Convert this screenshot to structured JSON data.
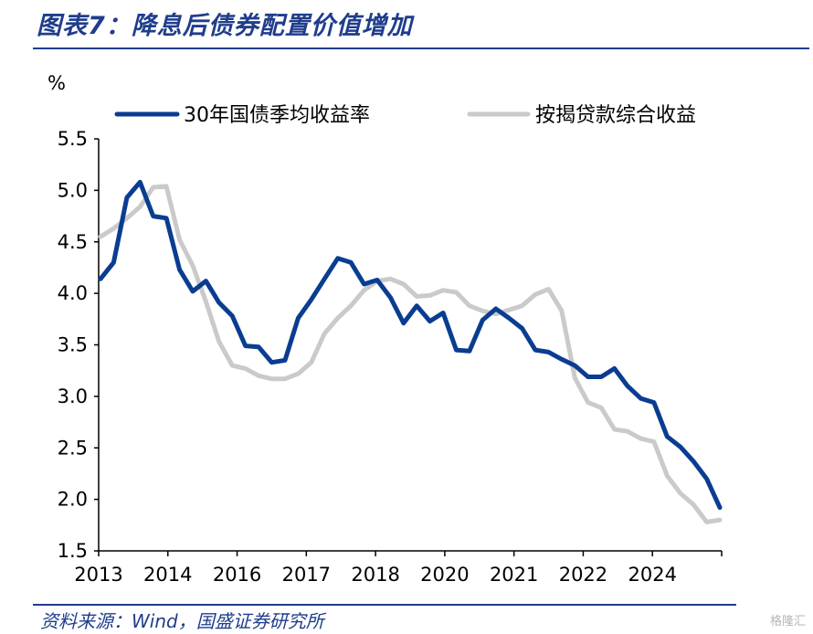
{
  "title": "图表7：降息后债券配置价值增加",
  "source": "资料来源：Wind，国盛证券研究所",
  "watermark": "格隆汇",
  "colors": {
    "series1": "#0a3d91",
    "series2": "#cacaca",
    "title": "#1f3d8c",
    "axis": "#000000"
  },
  "chart_data": {
    "type": "line",
    "ylabel": "%",
    "ylim": [
      1.5,
      5.5
    ],
    "yticks": [
      "1.5",
      "2.0",
      "2.5",
      "3.0",
      "3.5",
      "4.0",
      "4.5",
      "5.0",
      "5.5"
    ],
    "xticks": [
      "2013",
      "2014",
      "2016",
      "2017",
      "2018",
      "2020",
      "2021",
      "2022",
      "2024"
    ],
    "legend_position": "top",
    "grid": false,
    "series": [
      {
        "name": "30年国债季均收益率",
        "values": [
          4.14,
          4.3,
          4.93,
          5.08,
          4.75,
          4.73,
          4.23,
          4.02,
          4.12,
          3.91,
          3.78,
          3.49,
          3.48,
          3.33,
          3.35,
          3.76,
          3.94,
          4.14,
          4.34,
          4.3,
          4.09,
          4.13,
          3.96,
          3.71,
          3.88,
          3.73,
          3.81,
          3.45,
          3.44,
          3.74,
          3.85,
          3.76,
          3.66,
          3.45,
          3.43,
          3.36,
          3.3,
          3.19,
          3.19,
          3.27,
          3.1,
          2.98,
          2.94,
          2.61,
          2.51,
          2.37,
          2.2,
          1.92
        ]
      },
      {
        "name": "按揭贷款综合收益",
        "values": [
          4.55,
          4.63,
          4.73,
          4.84,
          5.03,
          5.04,
          4.52,
          4.27,
          3.92,
          3.53,
          3.3,
          3.27,
          3.2,
          3.17,
          3.17,
          3.22,
          3.33,
          3.61,
          3.76,
          3.88,
          4.03,
          4.12,
          4.14,
          4.09,
          3.97,
          3.98,
          4.03,
          4.01,
          3.88,
          3.83,
          3.8,
          3.84,
          3.88,
          3.99,
          4.04,
          3.83,
          3.18,
          2.94,
          2.89,
          2.68,
          2.66,
          2.59,
          2.56,
          2.23,
          2.06,
          1.95,
          1.78,
          1.8
        ]
      }
    ]
  }
}
